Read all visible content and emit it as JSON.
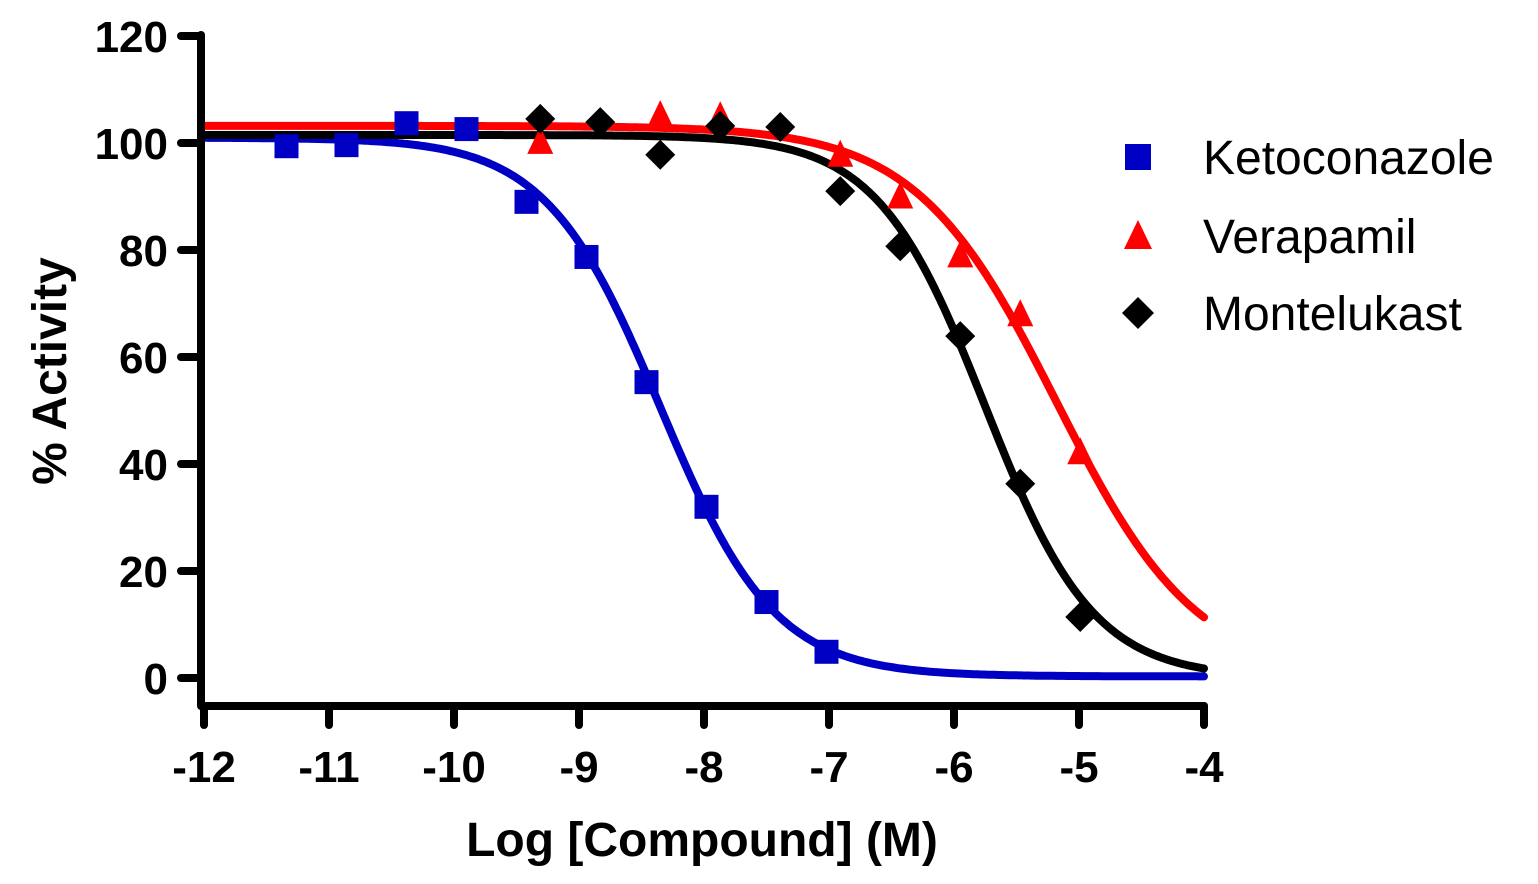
{
  "chart_data": {
    "type": "scatter",
    "title": "",
    "xlabel": "Log [Compound] (M)",
    "ylabel": "% Activity",
    "xlim": [
      -12,
      -4
    ],
    "ylim": [
      0,
      120
    ],
    "x_ticks": [
      -12,
      -11,
      -10,
      -9,
      -8,
      -7,
      -6,
      -5,
      -4
    ],
    "x_tick_labels": [
      "-12",
      "-11",
      "-10",
      "-9",
      "-8",
      "-7",
      "-6",
      "-5",
      "-4"
    ],
    "y_ticks": [
      0,
      20,
      40,
      60,
      80,
      100,
      120
    ],
    "y_tick_labels": [
      "0",
      "20",
      "40",
      "60",
      "80",
      "100",
      "120"
    ],
    "grid": false,
    "legend_position": "top-right",
    "series": [
      {
        "name": "Ketoconazole",
        "color": "#0000c4",
        "marker": "square",
        "x": [
          -11.34,
          -10.86,
          -10.38,
          -9.9,
          -9.42,
          -8.94,
          -8.46,
          -7.98,
          -7.5,
          -7.02
        ],
        "y": [
          99.4,
          99.6,
          103.7,
          102.6,
          89.0,
          78.7,
          55.3,
          32.0,
          14.2,
          4.9
        ],
        "fit": {
          "model": "four-parameter logistic",
          "top": 101.0,
          "bottom": 0.3,
          "log_ic50": -8.35,
          "hill_slope": 0.95
        }
      },
      {
        "name": "Verapamil",
        "color": "#ff0000",
        "marker": "triangle",
        "x": [
          -9.31,
          -8.35,
          -7.87,
          -6.91,
          -6.43,
          -5.95,
          -5.47,
          -4.99
        ],
        "y": [
          100.2,
          105.2,
          105.0,
          97.8,
          90.0,
          79.0,
          68.0,
          42.2
        ],
        "fit": {
          "model": "four-parameter logistic",
          "top": 103.2,
          "bottom": 0.0,
          "log_ic50": -5.18,
          "hill_slope": 0.77
        }
      },
      {
        "name": "Montelukast",
        "color": "#000000",
        "marker": "diamond",
        "x": [
          -9.31,
          -8.83,
          -8.35,
          -7.87,
          -7.39,
          -6.91,
          -6.43,
          -5.95,
          -5.47,
          -4.99
        ],
        "y": [
          104.5,
          103.9,
          97.8,
          103.2,
          103.0,
          91.0,
          80.7,
          63.9,
          36.3,
          11.4
        ],
        "fit": {
          "model": "four-parameter logistic",
          "top": 101.5,
          "bottom": 0.0,
          "log_ic50": -5.75,
          "hill_slope": 1.0
        }
      }
    ]
  }
}
